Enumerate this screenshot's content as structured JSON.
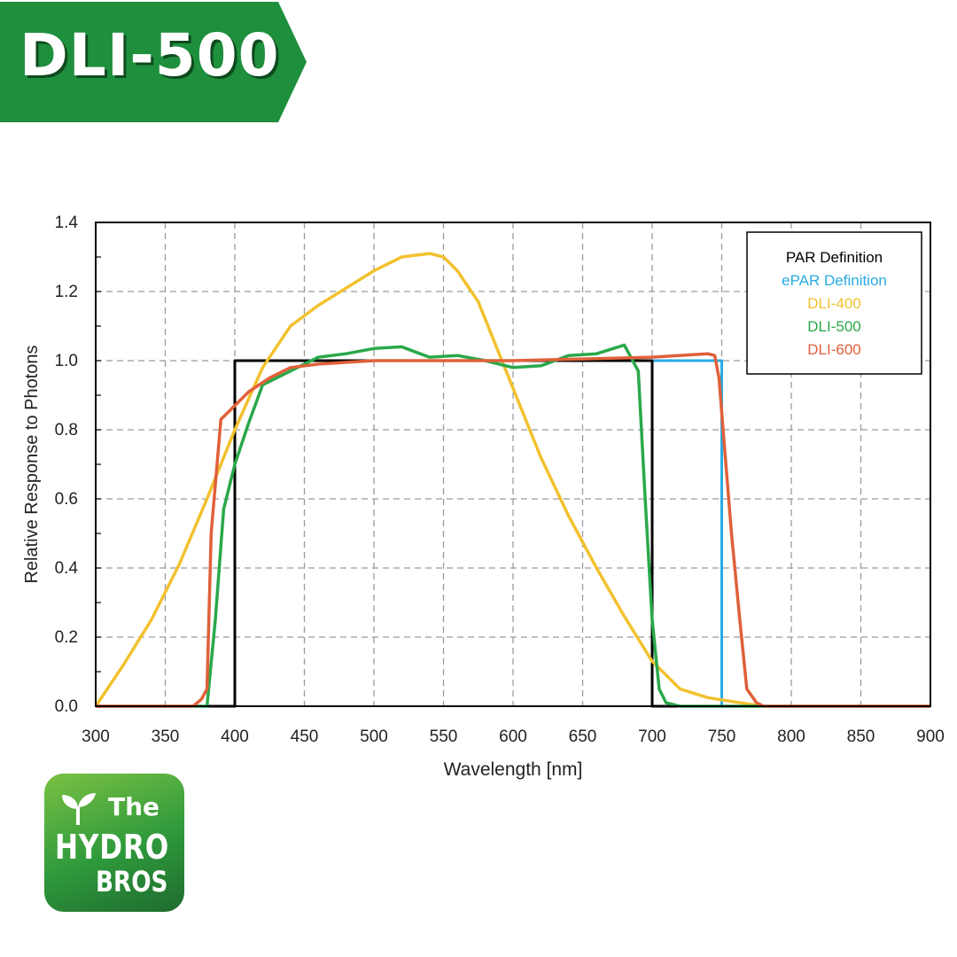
{
  "banner": {
    "title": "DLI-500",
    "color": "#1e8f3c",
    "shadow": "#0f4a1e"
  },
  "logo": {
    "line1": "The",
    "line2": "HYDRO",
    "line3": "BROS",
    "icon": "leaf-icon"
  },
  "chart_data": {
    "type": "line",
    "xlabel": "Wavelength [nm]",
    "ylabel": "Relative Response to Photons",
    "xlim": [
      300,
      900
    ],
    "ylim": [
      0,
      1.4
    ],
    "xticks": [
      "300",
      "350",
      "400",
      "450",
      "500",
      "550",
      "600",
      "650",
      "700",
      "750",
      "800",
      "850",
      "900"
    ],
    "yticks": [
      "0.0",
      "0.2",
      "0.4",
      "0.6",
      "0.8",
      "1.0",
      "1.2",
      "1.4"
    ],
    "grid": true,
    "legend_position": "top-right",
    "series": [
      {
        "name": "PAR Definition",
        "color": "#000000",
        "points": [
          [
            300,
            0
          ],
          [
            400,
            0
          ],
          [
            400,
            1
          ],
          [
            700,
            1
          ],
          [
            700,
            0
          ],
          [
            900,
            0
          ]
        ]
      },
      {
        "name": "ePAR Definition",
        "color": "#29abe2",
        "points": [
          [
            300,
            0
          ],
          [
            400,
            0
          ],
          [
            400,
            1
          ],
          [
            750,
            1
          ],
          [
            750,
            0
          ],
          [
            900,
            0
          ]
        ]
      },
      {
        "name": "DLI-400",
        "color": "#f2c12e",
        "points": [
          [
            300,
            0
          ],
          [
            320,
            0.12
          ],
          [
            340,
            0.25
          ],
          [
            360,
            0.41
          ],
          [
            380,
            0.6
          ],
          [
            400,
            0.8
          ],
          [
            420,
            0.98
          ],
          [
            440,
            1.1
          ],
          [
            460,
            1.16
          ],
          [
            480,
            1.21
          ],
          [
            500,
            1.26
          ],
          [
            520,
            1.3
          ],
          [
            540,
            1.31
          ],
          [
            550,
            1.3
          ],
          [
            560,
            1.26
          ],
          [
            575,
            1.17
          ],
          [
            590,
            1.02
          ],
          [
            600,
            0.92
          ],
          [
            620,
            0.72
          ],
          [
            640,
            0.55
          ],
          [
            660,
            0.4
          ],
          [
            680,
            0.26
          ],
          [
            700,
            0.13
          ],
          [
            720,
            0.05
          ],
          [
            740,
            0.025
          ],
          [
            760,
            0.012
          ],
          [
            780,
            0
          ]
        ]
      },
      {
        "name": "DLI-500",
        "color": "#2aa84a",
        "points": [
          [
            300,
            0
          ],
          [
            380,
            0
          ],
          [
            386,
            0.25
          ],
          [
            392,
            0.57
          ],
          [
            400,
            0.7
          ],
          [
            410,
            0.82
          ],
          [
            420,
            0.93
          ],
          [
            440,
            0.97
          ],
          [
            460,
            1.01
          ],
          [
            480,
            1.02
          ],
          [
            500,
            1.035
          ],
          [
            520,
            1.04
          ],
          [
            530,
            1.025
          ],
          [
            540,
            1.01
          ],
          [
            560,
            1.015
          ],
          [
            580,
            1.0
          ],
          [
            600,
            0.98
          ],
          [
            620,
            0.985
          ],
          [
            640,
            1.015
          ],
          [
            660,
            1.02
          ],
          [
            680,
            1.045
          ],
          [
            690,
            0.97
          ],
          [
            695,
            0.6
          ],
          [
            700,
            0.25
          ],
          [
            705,
            0.05
          ],
          [
            710,
            0.01
          ],
          [
            720,
            0
          ],
          [
            900,
            0
          ]
        ]
      },
      {
        "name": "DLI-600",
        "color": "#e0603a",
        "points": [
          [
            300,
            0
          ],
          [
            370,
            0
          ],
          [
            376,
            0.02
          ],
          [
            380,
            0.05
          ],
          [
            383,
            0.5
          ],
          [
            390,
            0.83
          ],
          [
            400,
            0.87
          ],
          [
            410,
            0.91
          ],
          [
            425,
            0.95
          ],
          [
            440,
            0.98
          ],
          [
            460,
            0.99
          ],
          [
            500,
            1.0
          ],
          [
            550,
            1.0
          ],
          [
            600,
            1.0
          ],
          [
            650,
            1.005
          ],
          [
            700,
            1.01
          ],
          [
            740,
            1.02
          ],
          [
            745,
            1.015
          ],
          [
            748,
            0.95
          ],
          [
            752,
            0.75
          ],
          [
            757,
            0.5
          ],
          [
            763,
            0.25
          ],
          [
            768,
            0.05
          ],
          [
            775,
            0.01
          ],
          [
            780,
            0
          ],
          [
            900,
            0
          ]
        ]
      }
    ]
  }
}
